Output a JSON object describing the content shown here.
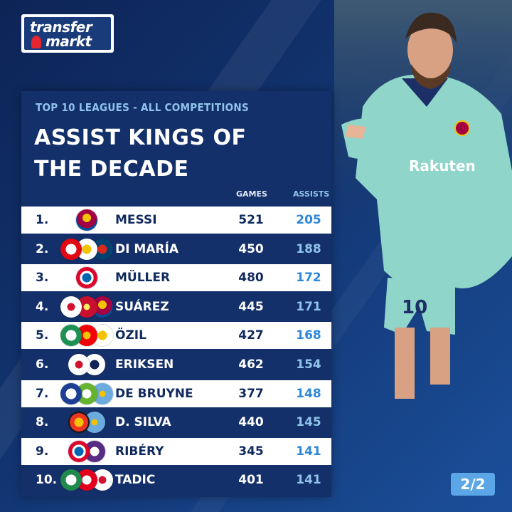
{
  "brand": {
    "line1": "transfer",
    "line2": "markt"
  },
  "header": {
    "subtitle": "TOP 10 LEAGUES - ALL COMPETITIONS",
    "title": "ASSIST KINGS OF THE DECADE"
  },
  "columns": {
    "games": "GAMES",
    "assists": "ASSISTS"
  },
  "players": [
    {
      "rank": "1.",
      "name": "MESSI",
      "games": "521",
      "assists": "205",
      "crests": [
        "barcelona-crest"
      ]
    },
    {
      "rank": "2.",
      "name": "DI MARÍA",
      "games": "450",
      "assists": "188",
      "crests": [
        "benfica-crest",
        "real-madrid-crest",
        "psg-crest"
      ]
    },
    {
      "rank": "3.",
      "name": "MÜLLER",
      "games": "480",
      "assists": "172",
      "crests": [
        "bayern-crest"
      ]
    },
    {
      "rank": "4.",
      "name": "SUÁREZ",
      "games": "445",
      "assists": "171",
      "crests": [
        "ajax-crest",
        "liverpool-crest",
        "barcelona-crest"
      ]
    },
    {
      "rank": "5.",
      "name": "ÖZIL",
      "games": "427",
      "assists": "168",
      "crests": [
        "werder-bremen-crest",
        "arsenal-crest",
        "real-madrid-crest"
      ]
    },
    {
      "rank": "6.",
      "name": "ERIKSEN",
      "games": "462",
      "assists": "154",
      "crests": [
        "ajax-crest",
        "tottenham-crest"
      ]
    },
    {
      "rank": "7.",
      "name": "DE BRUYNE",
      "games": "377",
      "assists": "148",
      "crests": [
        "genk-crest",
        "wolfsburg-crest",
        "man-city-crest"
      ]
    },
    {
      "rank": "8.",
      "name": "D. SILVA",
      "games": "440",
      "assists": "145",
      "crests": [
        "valencia-crest",
        "man-city-crest"
      ]
    },
    {
      "rank": "9.",
      "name": "RIBÉRY",
      "games": "345",
      "assists": "141",
      "crests": [
        "bayern-crest",
        "fiorentina-crest"
      ]
    },
    {
      "rank": "10.",
      "name": "TADIC",
      "games": "401",
      "assists": "141",
      "crests": [
        "groningen-crest",
        "twente-crest",
        "ajax-crest"
      ]
    }
  ],
  "page_indicator": "2/2",
  "colors": {
    "panel": "#14306a",
    "accent": "#8fc3ea",
    "assists_on_light": "#2e87d8",
    "logo_red": "#e3262f"
  }
}
